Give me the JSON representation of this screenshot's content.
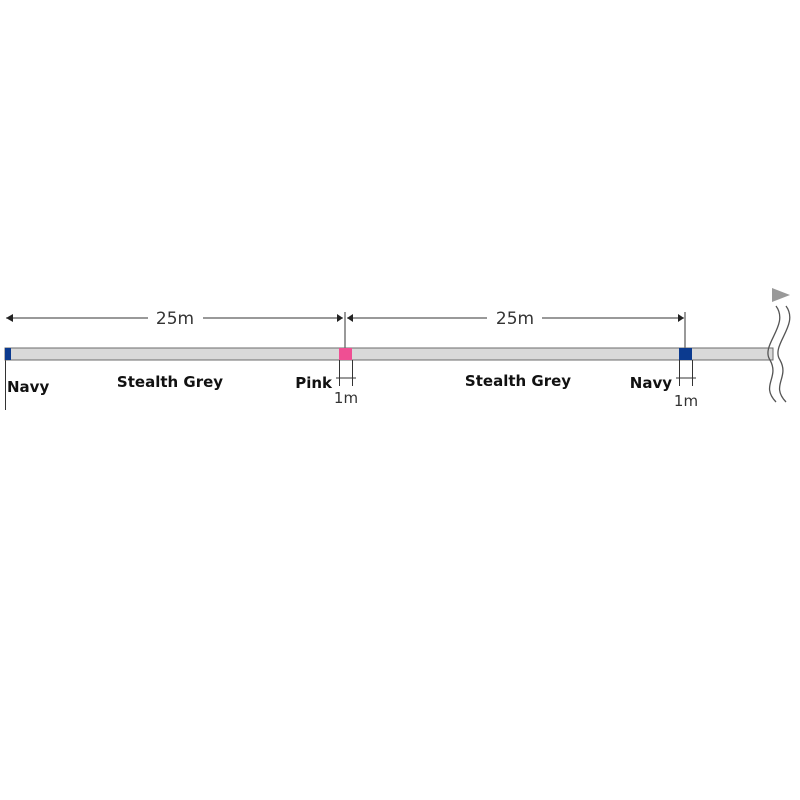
{
  "colors": {
    "navy": "#0b3a8f",
    "pink": "#ef4f93",
    "stealth_grey": "#d9d9d9",
    "outline": "#6b6b6b",
    "arrow": "#999999"
  },
  "segments": [
    {
      "label": "Navy"
    },
    {
      "label": "Stealth Grey"
    },
    {
      "label": "Pink",
      "length": "1m"
    },
    {
      "label": "Stealth Grey"
    },
    {
      "label": "Navy",
      "length": "1m"
    }
  ],
  "dimensions": [
    {
      "label": "25m"
    },
    {
      "label": "25m"
    }
  ]
}
